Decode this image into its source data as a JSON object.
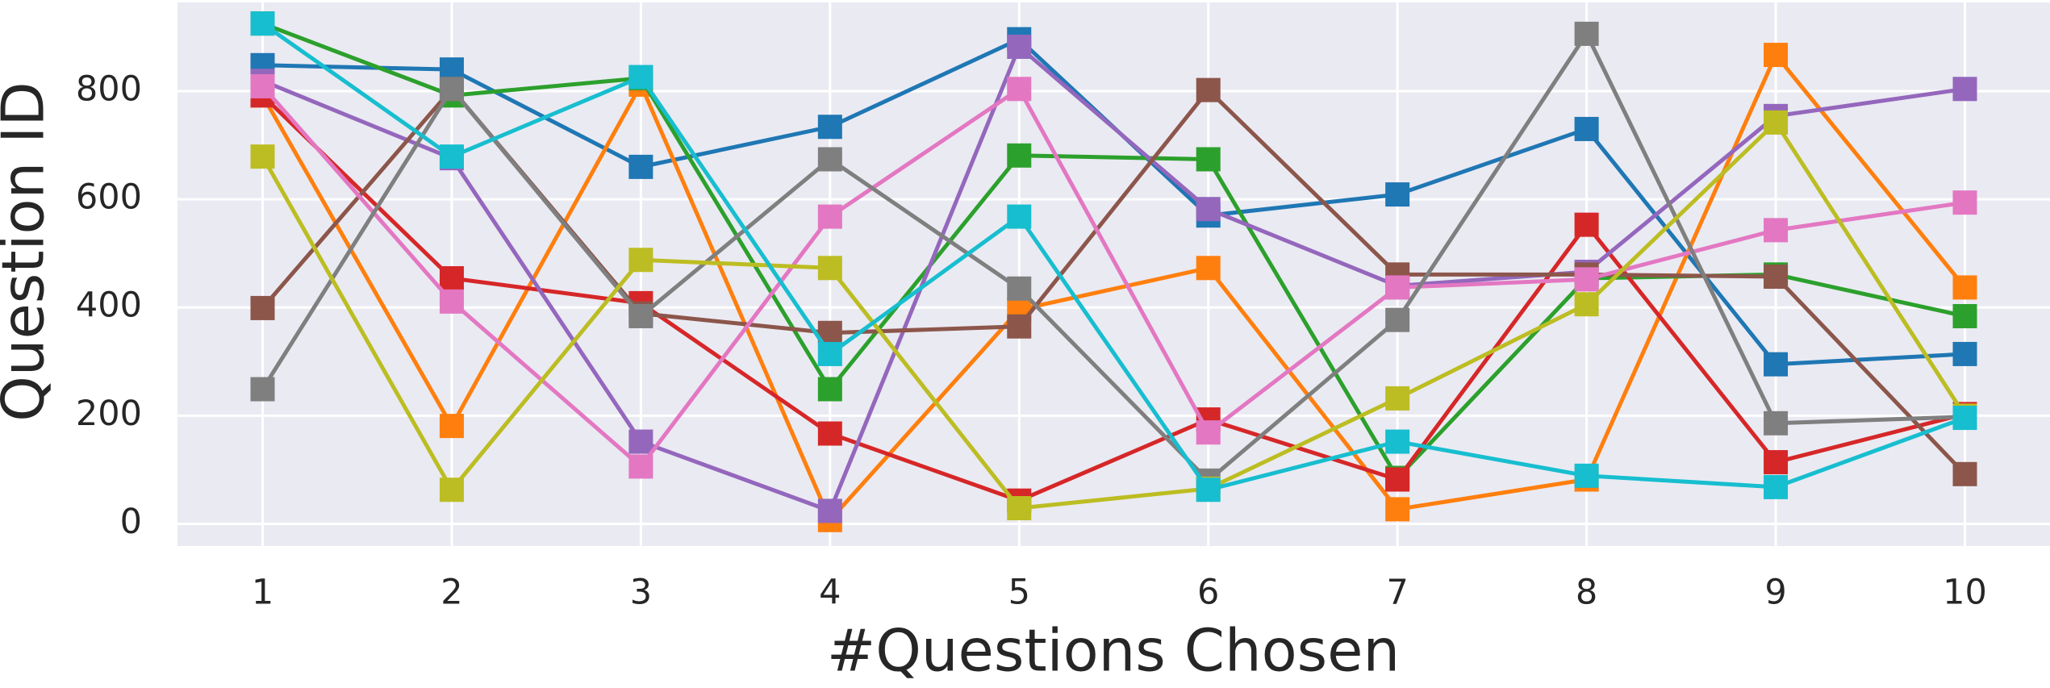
{
  "chart_data": {
    "type": "line",
    "xlabel": "#Questions Chosen",
    "ylabel": "Question ID",
    "x": [
      1,
      2,
      3,
      4,
      5,
      6,
      7,
      8,
      9,
      10
    ],
    "xlim": [
      0.55,
      10.45
    ],
    "xticks": [
      1,
      2,
      3,
      4,
      5,
      6,
      7,
      8,
      9,
      10
    ],
    "ylim": [
      -41,
      964
    ],
    "yticks": [
      0,
      200,
      400,
      600,
      800
    ],
    "grid": true,
    "marker": "square",
    "series": [
      {
        "color": "#1f77b4",
        "values": [
          848,
          840,
          660,
          734,
          896,
          570,
          609,
          730,
          295,
          314
        ]
      },
      {
        "color": "#ff7f0e",
        "values": [
          792,
          181,
          812,
          7,
          396,
          473,
          27,
          82,
          867,
          437
        ]
      },
      {
        "color": "#2ca02c",
        "values": [
          925,
          792,
          824,
          249,
          681,
          674,
          85,
          454,
          461,
          384
        ]
      },
      {
        "color": "#d62728",
        "values": [
          792,
          454,
          408,
          167,
          43,
          193,
          82,
          553,
          114,
          203
        ]
      },
      {
        "color": "#9467bd",
        "values": [
          819,
          676,
          152,
          24,
          882,
          582,
          440,
          466,
          754,
          804
        ]
      },
      {
        "color": "#8c564b",
        "values": [
          399,
          804,
          389,
          353,
          365,
          802,
          461,
          461,
          457,
          92
        ]
      },
      {
        "color": "#e377c2",
        "values": [
          809,
          411,
          106,
          568,
          804,
          169,
          437,
          452,
          543,
          594
        ]
      },
      {
        "color": "#7f7f7f",
        "values": [
          249,
          804,
          384,
          674,
          435,
          80,
          377,
          906,
          186,
          198
        ]
      },
      {
        "color": "#bcbd22",
        "values": [
          679,
          63,
          488,
          473,
          29,
          65,
          232,
          406,
          742,
          200
        ]
      },
      {
        "color": "#17becf",
        "values": [
          925,
          679,
          826,
          314,
          568,
          63,
          152,
          89,
          68,
          196
        ]
      }
    ]
  }
}
